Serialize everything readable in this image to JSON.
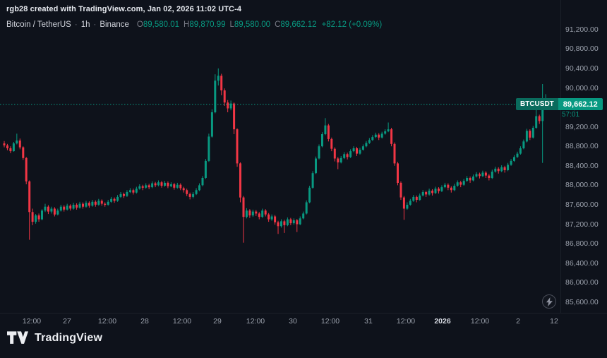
{
  "attribution": "rgb28 created with TradingView.com, Jan 02, 2026 11:02 UTC-4",
  "legend": {
    "symbol": "Bitcoin / TetherUS",
    "sep": "·",
    "interval": "1h",
    "exchange": "Binance",
    "o_label": "O",
    "o_value": "89,580.01",
    "h_label": "H",
    "h_value": "89,870.99",
    "l_label": "L",
    "l_value": "89,580.00",
    "c_label": "C",
    "c_value": "89,662.12",
    "change": "+82.12 (+0.09%)"
  },
  "price_label": {
    "symbol": "BTCUSDT",
    "price": "89,662.12",
    "countdown": "57:01",
    "value": 89662.12
  },
  "logo": {
    "text": "TradingView"
  },
  "colors": {
    "up": "#089981",
    "down": "#f23645",
    "accent": "#089981",
    "background": "#0e121b",
    "axis_text": "#9aa0ab",
    "text": "#d1d4dc",
    "muted": "#787b86"
  },
  "chart_data": {
    "type": "candlestick",
    "symbol": "BTCUSDT",
    "title": "Bitcoin / TetherUS · 1h · Binance",
    "interval": "1h",
    "exchange": "Binance",
    "last_price": 89662.12,
    "current_ohlc": {
      "o": 89580.01,
      "h": 89870.99,
      "l": 89580.0,
      "c": 89662.12,
      "change": 82.12,
      "change_pct": 0.09
    },
    "price_range": [
      85380,
      91400
    ],
    "grid": false,
    "y_ticks": [
      {
        "label": "91,200.00",
        "value": 91200
      },
      {
        "label": "90,800.00",
        "value": 90800
      },
      {
        "label": "90,400.00",
        "value": 90400
      },
      {
        "label": "90,000.00",
        "value": 90000
      },
      {
        "label": "89,600.00",
        "value": 89600
      },
      {
        "label": "89,200.00",
        "value": 89200
      },
      {
        "label": "88,800.00",
        "value": 88800
      },
      {
        "label": "88,400.00",
        "value": 88400
      },
      {
        "label": "88,000.00",
        "value": 88000
      },
      {
        "label": "87,600.00",
        "value": 87600
      },
      {
        "label": "87,200.00",
        "value": 87200
      },
      {
        "label": "86,800.00",
        "value": 86800
      },
      {
        "label": "86,400.00",
        "value": 86400
      },
      {
        "label": "86,000.00",
        "value": 86000
      },
      {
        "label": "85,600.00",
        "value": 85600
      }
    ],
    "x_ticks": [
      {
        "label": "12:00",
        "x": 45
      },
      {
        "label": "27",
        "x": 95
      },
      {
        "label": "12:00",
        "x": 152
      },
      {
        "label": "28",
        "x": 205
      },
      {
        "label": "12:00",
        "x": 258
      },
      {
        "label": "29",
        "x": 308
      },
      {
        "label": "12:00",
        "x": 362
      },
      {
        "label": "30",
        "x": 415
      },
      {
        "label": "12:00",
        "x": 468
      },
      {
        "label": "31",
        "x": 522
      },
      {
        "label": "12:00",
        "x": 575
      },
      {
        "label": "2026",
        "x": 627,
        "major": true
      },
      {
        "label": "12:00",
        "x": 680
      },
      {
        "label": "2",
        "x": 734
      },
      {
        "label": "12",
        "x": 785
      }
    ],
    "candles": [
      [
        88860,
        88910,
        88780,
        88820
      ],
      [
        88820,
        88850,
        88720,
        88760
      ],
      [
        88760,
        88800,
        88660,
        88700
      ],
      [
        88700,
        88890,
        88690,
        88860
      ],
      [
        88860,
        89060,
        88840,
        88920
      ],
      [
        88920,
        88960,
        88740,
        88780
      ],
      [
        88780,
        88800,
        88520,
        88560
      ],
      [
        88560,
        88580,
        88020,
        88080
      ],
      [
        88080,
        88100,
        86880,
        87450
      ],
      [
        87450,
        87520,
        87180,
        87250
      ],
      [
        87250,
        87410,
        87210,
        87380
      ],
      [
        87380,
        87420,
        87250,
        87300
      ],
      [
        87300,
        87510,
        87280,
        87480
      ],
      [
        87480,
        87620,
        87450,
        87560
      ],
      [
        87560,
        87590,
        87410,
        87460
      ],
      [
        87460,
        87560,
        87420,
        87520
      ],
      [
        87520,
        87550,
        87360,
        87400
      ],
      [
        87400,
        87520,
        87380,
        87480
      ],
      [
        87480,
        87600,
        87460,
        87560
      ],
      [
        87560,
        87590,
        87460,
        87500
      ],
      [
        87500,
        87620,
        87480,
        87580
      ],
      [
        87580,
        87610,
        87480,
        87520
      ],
      [
        87520,
        87640,
        87500,
        87600
      ],
      [
        87600,
        87630,
        87500,
        87540
      ],
      [
        87540,
        87660,
        87520,
        87620
      ],
      [
        87620,
        87650,
        87520,
        87560
      ],
      [
        87560,
        87680,
        87540,
        87640
      ],
      [
        87640,
        87670,
        87540,
        87580
      ],
      [
        87580,
        87700,
        87560,
        87660
      ],
      [
        87660,
        87690,
        87560,
        87600
      ],
      [
        87600,
        87720,
        87580,
        87680
      ],
      [
        87680,
        87710,
        87580,
        87620
      ],
      [
        87620,
        87650,
        87560,
        87600
      ],
      [
        87600,
        87700,
        87580,
        87660
      ],
      [
        87660,
        87760,
        87640,
        87720
      ],
      [
        87720,
        87750,
        87640,
        87680
      ],
      [
        87680,
        87800,
        87660,
        87760
      ],
      [
        87760,
        87860,
        87740,
        87820
      ],
      [
        87820,
        87850,
        87740,
        87780
      ],
      [
        87780,
        87900,
        87760,
        87860
      ],
      [
        87860,
        87940,
        87840,
        87900
      ],
      [
        87900,
        87930,
        87810,
        87850
      ],
      [
        87850,
        87970,
        87830,
        87930
      ],
      [
        87930,
        88020,
        87910,
        87980
      ],
      [
        87980,
        88010,
        87900,
        87950
      ],
      [
        87950,
        88040,
        87930,
        88000
      ],
      [
        88000,
        88030,
        87920,
        87960
      ],
      [
        87960,
        88080,
        87940,
        88040
      ],
      [
        88040,
        88070,
        87960,
        88000
      ],
      [
        88000,
        88100,
        87980,
        88060
      ],
      [
        88060,
        88090,
        87950,
        87990
      ],
      [
        87990,
        88090,
        87970,
        88050
      ],
      [
        88050,
        88080,
        87940,
        87980
      ],
      [
        87980,
        88060,
        87960,
        88020
      ],
      [
        88020,
        88050,
        87910,
        87950
      ],
      [
        87950,
        88050,
        87930,
        88010
      ],
      [
        88010,
        88040,
        87900,
        87940
      ],
      [
        87940,
        87970,
        87850,
        87900
      ],
      [
        87900,
        87930,
        87780,
        87820
      ],
      [
        87820,
        87850,
        87710,
        87760
      ],
      [
        87760,
        87860,
        87730,
        87820
      ],
      [
        87820,
        87940,
        87800,
        87900
      ],
      [
        87900,
        88040,
        87880,
        88000
      ],
      [
        88000,
        88190,
        87980,
        88150
      ],
      [
        88150,
        88540,
        88130,
        88500
      ],
      [
        88500,
        89060,
        88480,
        89000
      ],
      [
        89000,
        89560,
        88980,
        89500
      ],
      [
        89500,
        90280,
        89480,
        90150
      ],
      [
        90150,
        90400,
        90050,
        90250
      ],
      [
        90250,
        90290,
        89850,
        89950
      ],
      [
        89950,
        89990,
        89630,
        89700
      ],
      [
        89700,
        89750,
        89500,
        89580
      ],
      [
        89580,
        89740,
        89540,
        89680
      ],
      [
        89680,
        89700,
        89050,
        89150
      ],
      [
        89150,
        89170,
        88380,
        88450
      ],
      [
        88450,
        88470,
        87650,
        87750
      ],
      [
        87750,
        87780,
        86820,
        87350
      ],
      [
        87350,
        87530,
        87320,
        87480
      ],
      [
        87480,
        87510,
        87330,
        87380
      ],
      [
        87380,
        87500,
        87350,
        87460
      ],
      [
        87460,
        87490,
        87370,
        87420
      ],
      [
        87420,
        87450,
        87300,
        87350
      ],
      [
        87350,
        87520,
        87330,
        87480
      ],
      [
        87480,
        87510,
        87360,
        87400
      ],
      [
        87400,
        87430,
        87250,
        87300
      ],
      [
        87300,
        87400,
        87270,
        87360
      ],
      [
        87360,
        87390,
        87190,
        87240
      ],
      [
        87240,
        87270,
        87000,
        87160
      ],
      [
        87160,
        87300,
        87130,
        87260
      ],
      [
        87260,
        87290,
        87020,
        87180
      ],
      [
        87180,
        87340,
        87160,
        87300
      ],
      [
        87300,
        87330,
        87180,
        87220
      ],
      [
        87220,
        87320,
        87190,
        87280
      ],
      [
        87280,
        87310,
        87040,
        87200
      ],
      [
        87200,
        87360,
        87180,
        87320
      ],
      [
        87320,
        87460,
        87300,
        87420
      ],
      [
        87420,
        87690,
        87400,
        87650
      ],
      [
        87650,
        87990,
        87630,
        87950
      ],
      [
        87950,
        88290,
        87930,
        88250
      ],
      [
        88250,
        88590,
        88230,
        88550
      ],
      [
        88550,
        88840,
        88530,
        88800
      ],
      [
        88800,
        89090,
        88780,
        89050
      ],
      [
        89050,
        89380,
        89030,
        89230
      ],
      [
        89230,
        89260,
        88900,
        88950
      ],
      [
        88950,
        88980,
        88700,
        88750
      ],
      [
        88750,
        88780,
        88490,
        88550
      ],
      [
        88550,
        88580,
        88330,
        88470
      ],
      [
        88470,
        88600,
        88450,
        88560
      ],
      [
        88560,
        88680,
        88540,
        88640
      ],
      [
        88640,
        88670,
        88530,
        88580
      ],
      [
        88580,
        88740,
        88560,
        88700
      ],
      [
        88700,
        88800,
        88680,
        88760
      ],
      [
        88760,
        88790,
        88600,
        88650
      ],
      [
        88650,
        88770,
        88630,
        88730
      ],
      [
        88730,
        88840,
        88710,
        88800
      ],
      [
        88800,
        88910,
        88780,
        88870
      ],
      [
        88870,
        88970,
        88850,
        88930
      ],
      [
        88930,
        89030,
        88910,
        88990
      ],
      [
        88990,
        89080,
        88970,
        89040
      ],
      [
        89040,
        89070,
        88930,
        88980
      ],
      [
        88980,
        89100,
        88960,
        89060
      ],
      [
        89060,
        89150,
        89040,
        89110
      ],
      [
        89110,
        89290,
        89090,
        89150
      ],
      [
        89150,
        89180,
        88800,
        88850
      ],
      [
        88850,
        88880,
        88400,
        88450
      ],
      [
        88450,
        88480,
        88000,
        88050
      ],
      [
        88050,
        88080,
        87700,
        87750
      ],
      [
        87750,
        87780,
        87290,
        87520
      ],
      [
        87520,
        87650,
        87500,
        87600
      ],
      [
        87600,
        87720,
        87580,
        87680
      ],
      [
        87680,
        87800,
        87660,
        87760
      ],
      [
        87760,
        87790,
        87650,
        87700
      ],
      [
        87700,
        87830,
        87680,
        87790
      ],
      [
        87790,
        87900,
        87770,
        87860
      ],
      [
        87860,
        87890,
        87760,
        87810
      ],
      [
        87810,
        87930,
        87790,
        87890
      ],
      [
        87890,
        87920,
        87790,
        87840
      ],
      [
        87840,
        87970,
        87820,
        87930
      ],
      [
        87930,
        87960,
        87830,
        87880
      ],
      [
        87880,
        88000,
        87860,
        87960
      ],
      [
        87960,
        88050,
        87940,
        88010
      ],
      [
        88010,
        88040,
        87900,
        87950
      ],
      [
        87950,
        87980,
        87850,
        87900
      ],
      [
        87900,
        88030,
        87880,
        87990
      ],
      [
        87990,
        88100,
        87970,
        88060
      ],
      [
        88060,
        88090,
        87960,
        88010
      ],
      [
        88010,
        88130,
        87990,
        88090
      ],
      [
        88090,
        88190,
        88070,
        88150
      ],
      [
        88150,
        88180,
        88050,
        88100
      ],
      [
        88100,
        88220,
        88080,
        88180
      ],
      [
        88180,
        88270,
        88160,
        88230
      ],
      [
        88230,
        88260,
        88140,
        88190
      ],
      [
        88190,
        88300,
        88170,
        88260
      ],
      [
        88260,
        88290,
        88150,
        88200
      ],
      [
        88200,
        88230,
        88100,
        88150
      ],
      [
        88150,
        88320,
        88130,
        88280
      ],
      [
        88280,
        88380,
        88260,
        88340
      ],
      [
        88340,
        88370,
        88240,
        88290
      ],
      [
        88290,
        88410,
        88270,
        88370
      ],
      [
        88370,
        88400,
        88260,
        88310
      ],
      [
        88310,
        88460,
        88290,
        88420
      ],
      [
        88420,
        88540,
        88400,
        88500
      ],
      [
        88500,
        88620,
        88480,
        88580
      ],
      [
        88580,
        88690,
        88560,
        88650
      ],
      [
        88650,
        88800,
        88630,
        88760
      ],
      [
        88760,
        88940,
        88740,
        88900
      ],
      [
        88900,
        89160,
        88880,
        89120
      ],
      [
        89120,
        89150,
        88930,
        88980
      ],
      [
        88980,
        89220,
        88960,
        89180
      ],
      [
        89180,
        89560,
        89160,
        89420
      ],
      [
        89420,
        89450,
        89260,
        89320
      ],
      [
        89320,
        90080,
        88460,
        89580
      ],
      [
        89580,
        89871,
        89580,
        89662
      ]
    ]
  }
}
